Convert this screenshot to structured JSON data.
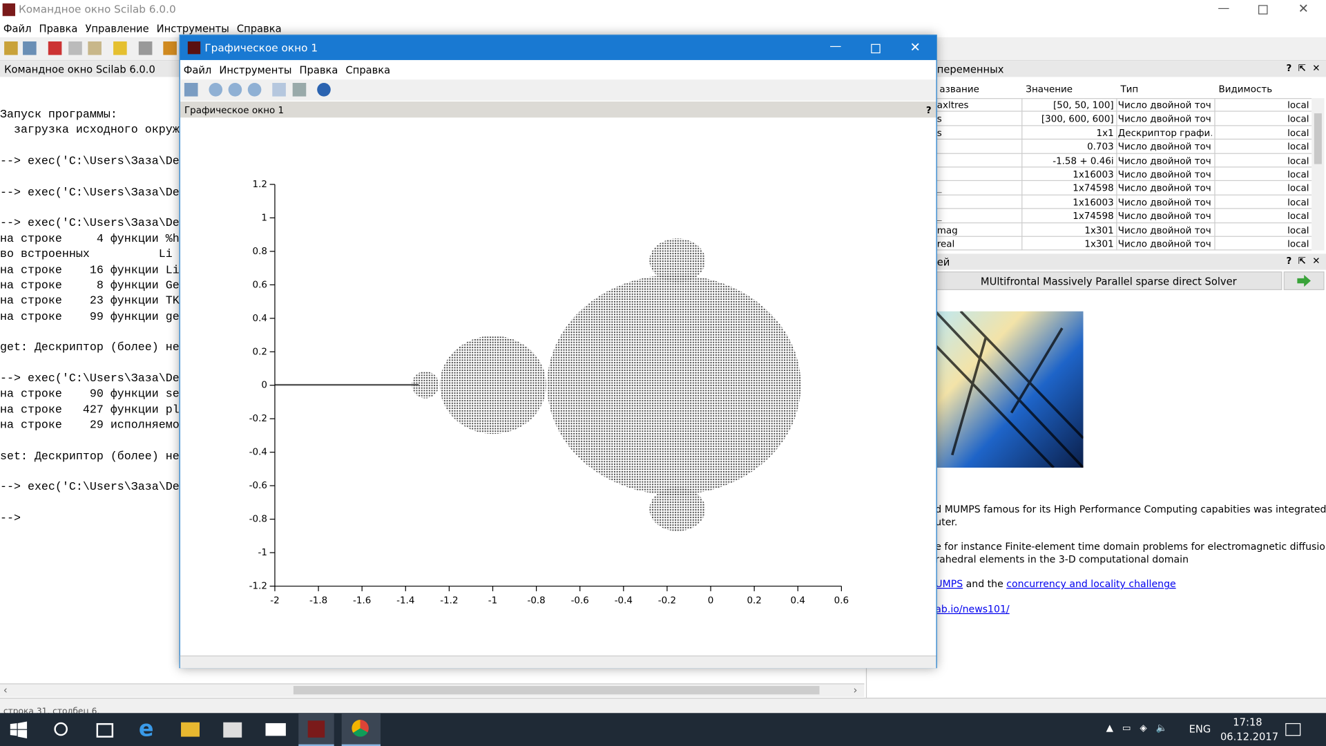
{
  "main_window": {
    "title": "Командное окно Scilab 6.0.0",
    "menu": [
      "Файл",
      "Правка",
      "Управление",
      "Инструменты",
      "Справка"
    ],
    "console_title": "Командное окно Scilab 6.0.0",
    "console_blocks": [
      [
        "Запуск программы:",
        "  загрузка исходного окруж"
      ],
      [
        "--> exec('C:\\Users\\Заза\\De"
      ],
      [
        "--> exec('C:\\Users\\Заза\\De"
      ],
      [
        "--> exec('C:\\Users\\Заза\\De",
        "на строке     4 функции %h",
        "во встроенных          Li",
        "на строке    16 функции Li",
        "на строке     8 функции Ge",
        "на строке    23 функции TK",
        "на строке    99 функции ge"
      ],
      [
        "get: Дескриптор (более) не"
      ],
      [
        "--> exec('C:\\Users\\Заза\\De",
        "на строке    90 функции se",
        "на строке   427 функции pl",
        "на строке    29 исполняемо"
      ],
      [
        "set: Дескриптор (более) не"
      ],
      [
        "--> exec('C:\\Users\\Заза\\De"
      ],
      [
        "-->"
      ]
    ],
    "status": "строка 31, столбец 6."
  },
  "variable_browser": {
    "title": "переменных",
    "columns": [
      "азвание",
      "Значение",
      "Тип",
      "Видимость"
    ],
    "rows": [
      {
        "name": "axltres",
        "value": "[50, 50, 100]",
        "type": "Число двойной точ…",
        "visibility": "local"
      },
      {
        "name": "s",
        "value": "[300, 600, 600]",
        "type": "Число двойной точ…",
        "visibility": "local"
      },
      {
        "name": "s",
        "value": "1x1",
        "type": "Дескриптор графи…",
        "visibility": "local"
      },
      {
        "value": "0.703",
        "type": "Число двойной точ…",
        "visibility": "local"
      },
      {
        "value": "-1.58 + 0.46i",
        "type": "Число двойной точ…",
        "visibility": "local"
      },
      {
        "value": "1x16003",
        "type": "Число двойной точ…",
        "visibility": "local"
      },
      {
        "name": "_",
        "value": "1x74598",
        "type": "Число двойной точ…",
        "visibility": "local"
      },
      {
        "value": "1x16003",
        "type": "Число двойной точ…",
        "visibility": "local"
      },
      {
        "name": "_",
        "value": "1x74598",
        "type": "Число двойной точ…",
        "visibility": "local"
      },
      {
        "name": "mag",
        "value": "1x301",
        "type": "Число двойной точ…",
        "visibility": "local"
      },
      {
        "name": "real",
        "value": "1x301",
        "type": "Число двойной точ…",
        "visibility": "local"
      }
    ]
  },
  "news_feed": {
    "title": "ей",
    "headline": "MUltifrontal Massively Parallel sparse direct Solver",
    "paragraphs": [
      [
        [
          {
            "text": "d MUMPS famous for its High Performance Computing capabities was integrated in Scilab on"
          }
        ],
        [
          {
            "text": "uter."
          }
        ]
      ],
      [
        [
          {
            "text": "e for instance Finite-element time domain problems for electromagnetic diffusion equations:"
          }
        ],
        [
          {
            "text": "rahedral elements in the 3-D computational domain"
          }
        ]
      ],
      [
        [
          {
            "text": "UMPS",
            "link": true
          },
          {
            "text": " and the "
          },
          {
            "text": "concurrency and locality challenge",
            "link": true
          }
        ]
      ],
      [
        [
          {
            "text": "ab.io/news101/",
            "link": true
          }
        ]
      ]
    ]
  },
  "graphic_window": {
    "title": "Графическое окно 1",
    "menu": [
      "Файл",
      "Инструменты",
      "Правка",
      "Справка"
    ],
    "figure_label": "Графическое окно 1",
    "plot": {
      "type": "scatter",
      "xlim": [
        -2,
        0.6
      ],
      "ylim": [
        -1.2,
        1.2
      ],
      "xticks": [
        -2,
        -1.8,
        -1.6,
        -1.4,
        -1.2,
        -1,
        -0.8,
        -0.6,
        -0.4,
        -0.2,
        0,
        0.2,
        0.4,
        0.6
      ],
      "yticks": [
        -1.2,
        -1,
        -0.8,
        -0.6,
        -0.4,
        -0.2,
        0,
        0.2,
        0.4,
        0.6,
        0.8,
        1,
        1.2
      ]
    }
  },
  "taskbar": {
    "language": "ENG",
    "time": "17:18",
    "date": "06.12.2017"
  }
}
